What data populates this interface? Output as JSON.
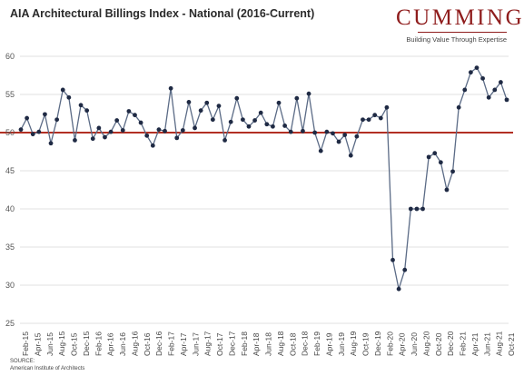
{
  "chart_data": {
    "type": "line",
    "title": "AIA Architectural Billings Index - National (2016-Current)",
    "ylim": [
      25,
      60
    ],
    "yticks": [
      25,
      30,
      35,
      40,
      45,
      50,
      55,
      60
    ],
    "grid": true,
    "reference_line": {
      "y": 50,
      "color": "#b23023"
    },
    "line_color": "#5b6b86",
    "marker_color": "#1f2a44",
    "xtick_labels": [
      "Feb-15",
      "Apr-15",
      "Jun-15",
      "Aug-15",
      "Oct-15",
      "Dec-15",
      "Feb-16",
      "Apr-16",
      "Jun-16",
      "Aug-16",
      "Oct-16",
      "Dec-16",
      "Feb-17",
      "Apr-17",
      "Jun-17",
      "Aug-17",
      "Oct-17",
      "Dec-17",
      "Feb-18",
      "Apr-18",
      "Jun-18",
      "Aug-18",
      "Oct-18",
      "Dec-18",
      "Feb-19",
      "Apr-19",
      "Jun-19",
      "Aug-19",
      "Oct-19",
      "Dec-19",
      "Feb-20",
      "Apr-20",
      "Jun-20",
      "Aug-20",
      "Oct-20",
      "Dec-20",
      "Feb-21",
      "Apr-21",
      "Jun-21",
      "Aug-21",
      "Oct-21"
    ],
    "series": [
      {
        "values": [
          50.4,
          51.9,
          49.8,
          50.1,
          52.4,
          48.6,
          51.7,
          55.6,
          54.6,
          49.0,
          53.6,
          52.9,
          49.2,
          50.6,
          49.4,
          50.1,
          51.6,
          50.3,
          52.8,
          52.3,
          51.3,
          49.6,
          48.3,
          50.4,
          50.2,
          55.8,
          49.3,
          50.3,
          54.0,
          50.6,
          52.9,
          53.9,
          51.7,
          53.5,
          49.0,
          51.4,
          54.5,
          51.7,
          50.8,
          51.6,
          52.6,
          51.1,
          50.8,
          53.9,
          50.9,
          50.1,
          54.5,
          50.2,
          55.1,
          50.0,
          47.6,
          50.1,
          49.9,
          48.8,
          49.7,
          47.0,
          49.5,
          51.7,
          51.7,
          52.3,
          51.9,
          53.3,
          33.3,
          29.5,
          32.0,
          40.0,
          40.0,
          40.0,
          46.8,
          47.3,
          46.1,
          42.5,
          44.9,
          53.3,
          55.6,
          57.9,
          58.5,
          57.1,
          54.6,
          55.6,
          56.6,
          54.3
        ]
      }
    ]
  },
  "header": {
    "logo": {
      "wordmark": "CUMMING",
      "tagline": "Building Value Through Expertise"
    }
  },
  "footer": {
    "source_label": "SOURCE:",
    "source_text": "American Institute of Architects"
  }
}
